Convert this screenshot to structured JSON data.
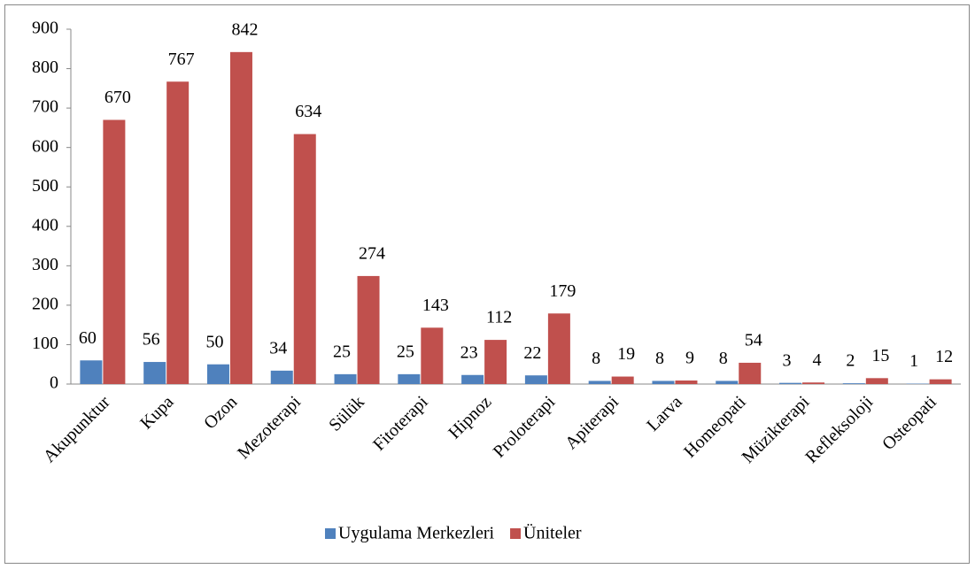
{
  "chart_data": {
    "type": "bar",
    "categories": [
      "Akupunktur",
      "Kupa",
      "Ozon",
      "Mezoterapi",
      "Sülük",
      "Fitoterapi",
      "Hipnoz",
      "Proloterapi",
      "Apiterapi",
      "Larva",
      "Homeopati",
      "Müzikterapi",
      "Refleksoloji",
      "Osteopati"
    ],
    "series": [
      {
        "name": "Uygulama Merkezleri",
        "color": "#4f81bd",
        "values": [
          60,
          56,
          50,
          34,
          25,
          25,
          23,
          22,
          8,
          8,
          8,
          3,
          2,
          1
        ]
      },
      {
        "name": "Üniteler",
        "color": "#c0504d",
        "values": [
          670,
          767,
          842,
          634,
          274,
          143,
          112,
          179,
          19,
          9,
          54,
          4,
          15,
          12
        ]
      }
    ],
    "ylim": [
      0,
      900
    ],
    "yticks": [
      0,
      100,
      200,
      300,
      400,
      500,
      600,
      700,
      800,
      900
    ],
    "grid": false,
    "legend": "bottom"
  }
}
